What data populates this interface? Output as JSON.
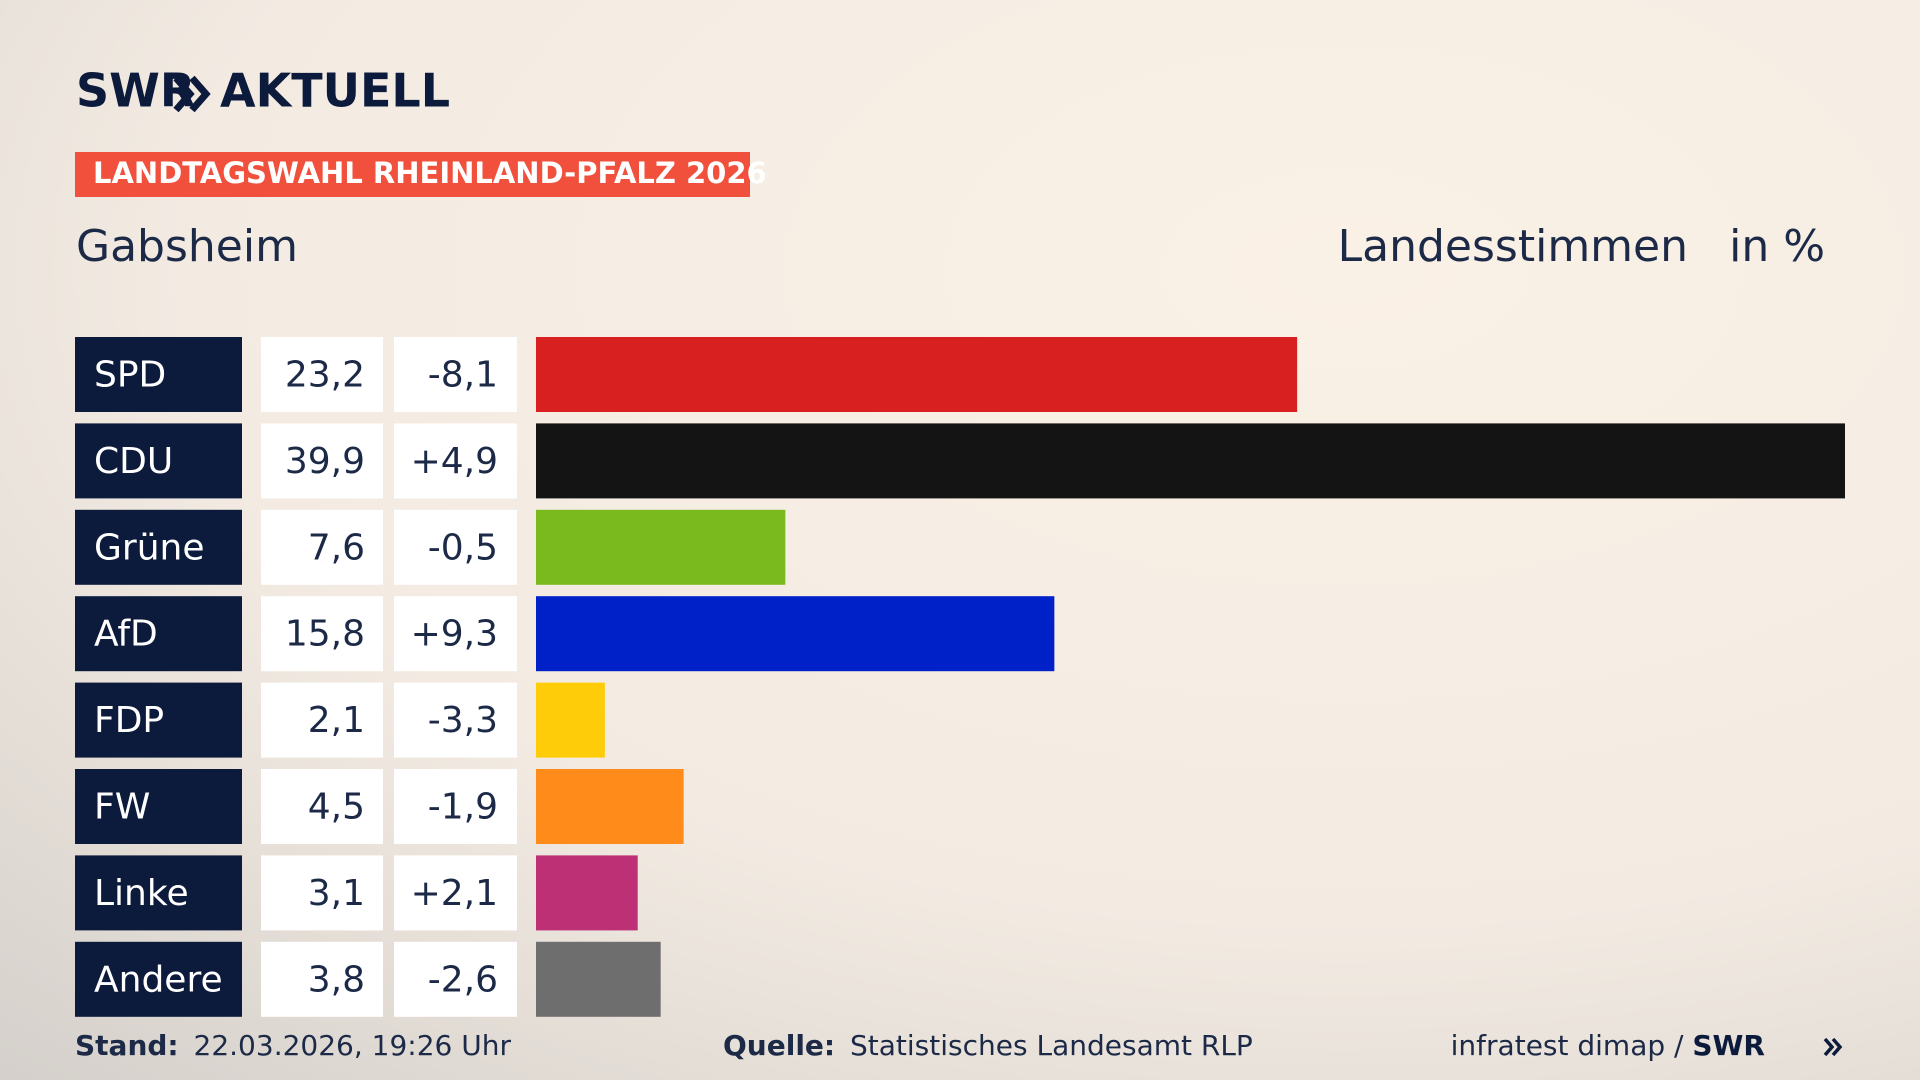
{
  "chart_data": {
    "type": "bar",
    "logo_left": "SWR",
    "logo_right": "AKTUELL",
    "banner": "LANDTAGSWAHL RHEINLAND-PFALZ 2026",
    "title": "Gabsheim",
    "measure": "Landesstimmen",
    "unit": "in %",
    "categories": [
      "SPD",
      "CDU",
      "Grüne",
      "AfD",
      "FDP",
      "FW",
      "Linke",
      "Andere"
    ],
    "values": [
      23.2,
      39.9,
      7.6,
      15.8,
      2.1,
      4.5,
      3.1,
      3.8
    ],
    "value_labels": [
      "23,2",
      "39,9",
      "7,6",
      "15,8",
      "2,1",
      "4,5",
      "3,1",
      "3,8"
    ],
    "changes": [
      -8.1,
      4.9,
      -0.5,
      9.3,
      -3.3,
      -1.9,
      2.1,
      -2.6
    ],
    "change_labels": [
      "-8,1",
      "+4,9",
      "-0,5",
      "+9,3",
      "-3,3",
      "-1,9",
      "+2,1",
      "-2,6"
    ],
    "colors": [
      "#d82020",
      "#141414",
      "#7aba1e",
      "#0020c8",
      "#ffcc0a",
      "#ff8c1a",
      "#bd3075",
      "#6e6e6e"
    ],
    "footer": {
      "stand_label": "Stand:",
      "stand": "22.03.2026, 19:26 Uhr",
      "source_label": "Quelle:",
      "source": "Statistisches Landesamt RLP",
      "credit": "infratest dimap / ",
      "credit_brand": "SWR"
    }
  }
}
